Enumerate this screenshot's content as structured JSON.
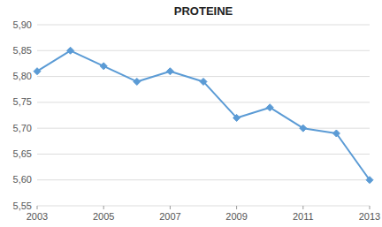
{
  "chart_data": {
    "type": "line",
    "title": "PROTEINE",
    "x": [
      2003,
      2004,
      2005,
      2006,
      2007,
      2008,
      2009,
      2010,
      2011,
      2012,
      2013
    ],
    "values": [
      5.81,
      5.85,
      5.82,
      5.79,
      5.81,
      5.79,
      5.72,
      5.74,
      5.7,
      5.69,
      5.6
    ],
    "color": "#5b9bd5",
    "marker": "diamond",
    "xlim": [
      2003,
      2013
    ],
    "xticks": [
      2003,
      2005,
      2007,
      2009,
      2011,
      2013
    ],
    "ylim": [
      5.55,
      5.9
    ],
    "yticks": [
      {
        "value": 5.55,
        "label": "5,55"
      },
      {
        "value": 5.6,
        "label": "5,60"
      },
      {
        "value": 5.65,
        "label": "5,65"
      },
      {
        "value": 5.7,
        "label": "5,70"
      },
      {
        "value": 5.75,
        "label": "5,75"
      },
      {
        "value": 5.8,
        "label": "5,80"
      },
      {
        "value": 5.85,
        "label": "5,85"
      },
      {
        "value": 5.9,
        "label": "5,90"
      }
    ],
    "grid": true
  }
}
